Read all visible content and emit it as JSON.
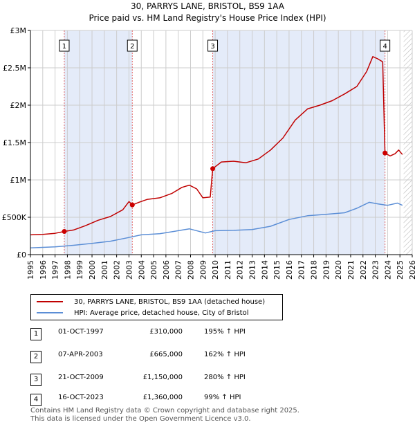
{
  "title_line1": "30, PARRYS LANE, BRISTOL, BS9 1AA",
  "title_line2": "Price paid vs. HM Land Registry's House Price Index (HPI)",
  "colors": {
    "property": "#c00000",
    "hpi": "#5b8ed6",
    "shade": "#dbe4f7",
    "marker": "#cc0000",
    "vline": "#e06666",
    "grid": "#cccccc"
  },
  "chart_data": {
    "type": "line",
    "title": "30, PARRYS LANE, BRISTOL, BS9 1AA — Price paid vs. HM Land Registry's House Price Index (HPI)",
    "xlim": [
      1995,
      2026
    ],
    "ylim": [
      0,
      3000000
    ],
    "y_ticks": [
      0,
      500000,
      1000000,
      1500000,
      2000000,
      2500000,
      3000000
    ],
    "y_tick_labels": [
      "£0",
      "£500K",
      "£1M",
      "£1.5M",
      "£2M",
      "£2.5M",
      "£3M"
    ],
    "x_ticks": [
      1995,
      1996,
      1997,
      1998,
      1999,
      2000,
      2001,
      2002,
      2003,
      2004,
      2005,
      2006,
      2007,
      2008,
      2009,
      2010,
      2011,
      2012,
      2013,
      2014,
      2015,
      2016,
      2017,
      2018,
      2019,
      2020,
      2021,
      2022,
      2023,
      2024,
      2025,
      2026
    ],
    "x_tick_labels": [
      "1995",
      "1996",
      "1997",
      "1998",
      "1999",
      "2000",
      "2001",
      "2002",
      "2003",
      "2004",
      "2005",
      "2006",
      "2007",
      "2008",
      "2009",
      "2010",
      "2011",
      "2012",
      "2013",
      "2014",
      "2015",
      "2016",
      "2017",
      "2018",
      "2019",
      "2020",
      "2021",
      "2022",
      "2023",
      "2024",
      "2025",
      "2026"
    ],
    "shaded_ranges": [
      [
        1997.75,
        2003.27
      ],
      [
        2009.8,
        2023.79
      ]
    ],
    "forecast_hatch_start": 2025.3,
    "series": [
      {
        "name": "30, PARRYS LANE, BRISTOL, BS9 1AA (detached house)",
        "x": [
          1995.0,
          1996.0,
          1997.0,
          1997.75,
          1998.5,
          1999.5,
          2000.5,
          2001.5,
          2002.5,
          2003.0,
          2003.27,
          2003.8,
          2004.5,
          2005.5,
          2006.5,
          2007.3,
          2007.9,
          2008.5,
          2009.0,
          2009.6,
          2009.8,
          2010.5,
          2011.5,
          2012.5,
          2013.5,
          2014.5,
          2015.5,
          2016.5,
          2017.5,
          2018.5,
          2019.5,
          2020.5,
          2021.5,
          2022.3,
          2022.8,
          2023.2,
          2023.6,
          2023.79,
          2024.2,
          2024.6,
          2024.9,
          2025.2
        ],
        "values": [
          265000,
          270000,
          285000,
          310000,
          330000,
          390000,
          460000,
          510000,
          600000,
          710000,
          665000,
          700000,
          740000,
          760000,
          820000,
          900000,
          930000,
          880000,
          760000,
          770000,
          1150000,
          1240000,
          1250000,
          1230000,
          1280000,
          1400000,
          1560000,
          1800000,
          1950000,
          2000000,
          2060000,
          2150000,
          2250000,
          2450000,
          2650000,
          2620000,
          2580000,
          1360000,
          1320000,
          1350000,
          1400000,
          1340000
        ]
      },
      {
        "name": "HPI: Average price, detached house, City of Bristol",
        "x": [
          1995.0,
          1997.0,
          1998.5,
          2000.0,
          2001.5,
          2003.0,
          2004.0,
          2005.5,
          2007.0,
          2007.9,
          2009.2,
          2010.0,
          2011.5,
          2013.0,
          2014.5,
          2016.0,
          2017.5,
          2019.0,
          2020.5,
          2021.5,
          2022.5,
          2023.2,
          2024.0,
          2024.8,
          2025.2
        ],
        "values": [
          90000,
          105000,
          125000,
          150000,
          180000,
          230000,
          265000,
          280000,
          320000,
          345000,
          290000,
          320000,
          325000,
          335000,
          380000,
          470000,
          520000,
          540000,
          560000,
          620000,
          700000,
          680000,
          660000,
          690000,
          660000
        ]
      }
    ],
    "sales": [
      {
        "label": "1",
        "x": 1997.75,
        "value": 310000
      },
      {
        "label": "2",
        "x": 2003.27,
        "value": 665000
      },
      {
        "label": "3",
        "x": 2009.8,
        "value": 1150000
      },
      {
        "label": "4",
        "x": 2023.79,
        "value": 1360000
      }
    ]
  },
  "legend": {
    "property_label": "30, PARRYS LANE, BRISTOL, BS9 1AA (detached house)",
    "hpi_label": "HPI: Average price, detached house, City of Bristol"
  },
  "transactions": [
    {
      "num": "1",
      "date": "01-OCT-1997",
      "price": "£310,000",
      "hpi": "195% ↑ HPI"
    },
    {
      "num": "2",
      "date": "07-APR-2003",
      "price": "£665,000",
      "hpi": "162% ↑ HPI"
    },
    {
      "num": "3",
      "date": "21-OCT-2009",
      "price": "£1,150,000",
      "hpi": "280% ↑ HPI"
    },
    {
      "num": "4",
      "date": "16-OCT-2023",
      "price": "£1,360,000",
      "hpi": "99% ↑ HPI"
    }
  ],
  "footer_line1": "Contains HM Land Registry data © Crown copyright and database right 2025.",
  "footer_line2": "This data is licensed under the Open Government Licence v3.0."
}
